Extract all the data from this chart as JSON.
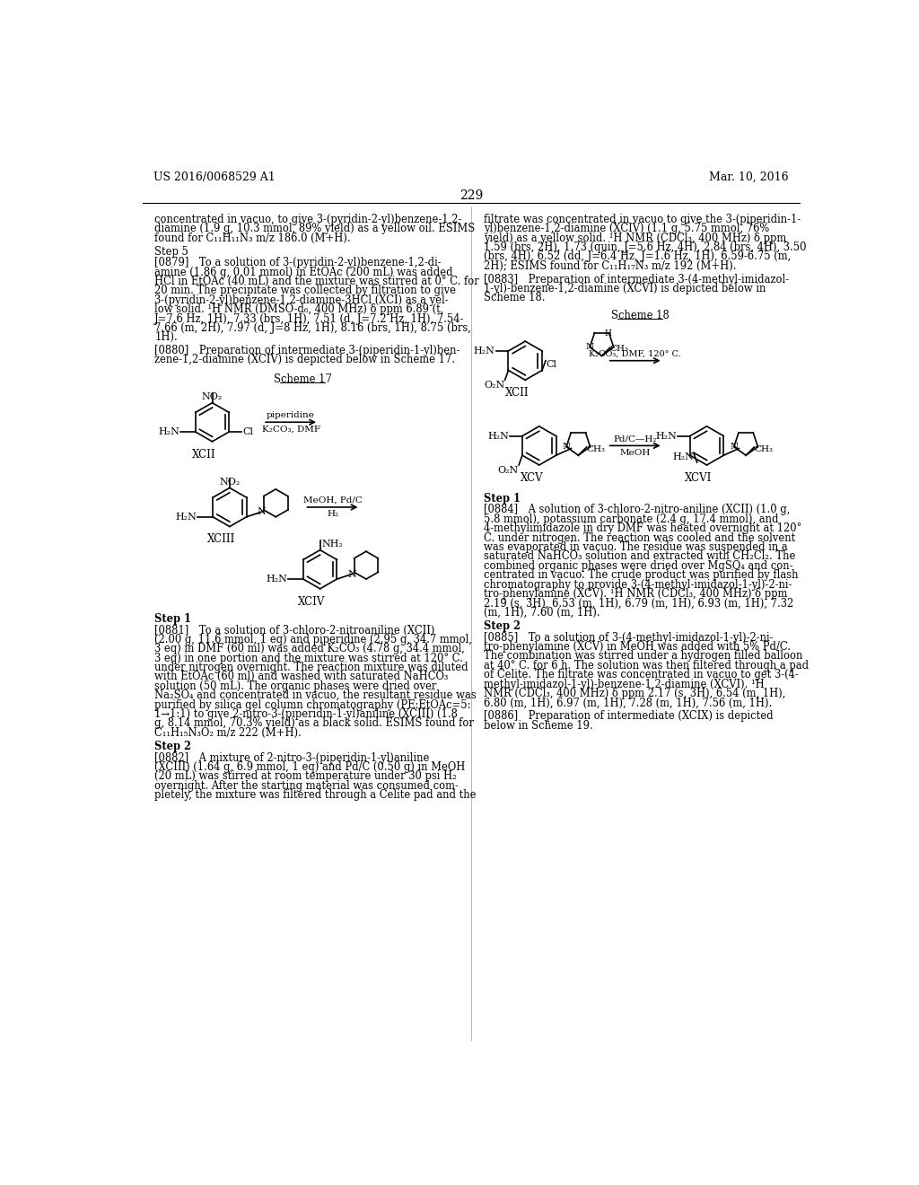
{
  "page_number": "229",
  "header_left": "US 2016/0068529 A1",
  "header_right": "Mar. 10, 2016",
  "bg_color": "#ffffff",
  "text_color": "#000000",
  "left_column": {
    "intro_text": "concentrated in vacuo, to give 3-(pyridin-2-yl)benzene-1,2-\ndiamine (1.9 g, 10.3 mmol, 89% yield) as a yellow oil. ESIMS\nfound for C₁₁H₁₁N₃ m/z 186.0 (M+H).",
    "step5_title": "Step 5",
    "step5_para": "[0879] To a solution of 3-(pyridin-2-yl)benzene-1,2-di-\namine (1.86 g, 0.01 mmol) in EtOAc (200 mL) was added\nHCl in EtOAc (40 mL) and the mixture was stirred at 0° C. for\n20 min. The precipitate was collected by filtration to give\n3-(pyridin-2-yl)benzene-1,2-diamine-3HCl (XCI) as a yel-\nlow solid. ¹H NMR (DMSO-d₆, 400 MHz) δ ppm 6.89 (t,\nJ=7.6 Hz, 1H), 7.33 (brs, 1H), 7.51 (d, J=7.2 Hz, 1H), 7.54-\n7.66 (m, 2H), 7.97 (d, J=8 Hz, 1H), 8.16 (brs, 1H), 8.75 (brs,\n1H).",
    "para0880": "[0880] Preparation of intermediate 3-(piperidin-1-yl)ben-\nzene-1,2-diamine (XCIV) is depicted below in Scheme 17.",
    "scheme17_label": "Scheme 17",
    "step1_title": "Step 1",
    "step1_para": "[0881] To a solution of 3-chloro-2-nitroaniline (XCII)\n(2.00 g, 11.6 mmol, 1 eq) and piperidine (2.95 g, 34.7 mmol,\n3 eq) in DMF (60 ml) was added K₂CO₃ (4.78 g, 34.4 mmol,\n3 eq) in one portion and the mixture was stirred at 120° C.\nunder nitrogen overnight. The reaction mixture was diluted\nwith EtOAc (60 ml) and washed with saturated NaHCO₃\nsolution (50 mL). The organic phases were dried over\nNa₂SO₄ and concentrated in vacuo, the resultant residue was\npurified by silica gel column chromatography (PE:EtOAc=5:\n1→1:1) to give 2-nitro-3-(piperidin-1-yl)aniline (XCIII) (1.8\ng, 8.14 mmol, 70.3% yield) as a black solid. ESIMS found for\nC₁₁H₁₅N₃O₂ m/z 222 (M+H).",
    "step2_title": "Step 2",
    "step2_para": "[0882] A mixture of 2-nitro-3-(piperidin-1-yl)aniline\n(XCIII) (1.64 g, 6.9 mmol, 1 eq) and Pd/C (0.50 g) in MeOH\n(20 mL) was stirred at room temperature under 30 psi H₂\novernight. After the starting material was consumed com-\npletely, the mixture was filtered through a Celite pad and the"
  },
  "right_column": {
    "intro_text": "filtrate was concentrated in vacuo to give the 3-(piperidin-1-\nyl)benzene-1,2-diamine (XCIV) (1.1 g, 5.75 mmol, 76%\nyield) as a yellow solid. ¹H NMR (CDCl₃, 400 MHz) δ ppm\n1.59 (brs, 2H), 1.73 (quin, J=5.6 Hz, 4H), 2.84 (brs, 4H), 3.50\n(brs, 4H), 6.52 (dd, J=6.4 Hz, J=1.6 Hz, 1H), 6.59-6.75 (m,\n2H); ESIMS found for C₁₁H₁₇N₃ m/z 192 (M+H).",
    "para0883": "[0883] Preparation of intermediate 3-(4-methyl-imidazol-\n1-yl)-benzene-1,2-diamine (XCVI) is depicted below in\nScheme 18.",
    "scheme18_label": "Scheme 18",
    "step1_title": "Step 1",
    "step1_para": "[0884] A solution of 3-chloro-2-nitro-aniline (XCII) (1.0 g,\n5.8 mmol), potassium carbonate (2.4 g, 17.4 mmol), and\n4-methylimidazole in dry DMF was heated overnight at 120°\nC. under nitrogen. The reaction was cooled and the solvent\nwas evaporated in vacuo. The residue was suspended in a\nsaturated NaHCO₃ solution and extracted with CH₂Cl₂. The\ncombined organic phases were dried over MgSO₄ and con-\ncentrated in vacuo. The crude product was purified by flash\nchromatography to provide 3-(4-methyl-imidazol-1-yl)-2-ni-\ntro-phenylamine (XCV). ¹H NMR (CDCl₃, 400 MHz) δ ppm\n2.19 (s, 3H), 6.53 (m, 1H), 6.79 (m, 1H), 6.93 (m, 1H), 7.32\n(m, 1H), 7.60 (m, 1H).",
    "step2_title": "Step 2",
    "step2_para": "[0885] To a solution of 3-(4-methyl-imidazol-1-yl)-2-ni-\ntro-phenylamine (XCV) in MeOH was added with 5% Pd/C.\nThe combination was stirred under a hydrogen filled balloon\nat 40° C. for 6 h. The solution was then filtered through a pad\nof Celite. The filtrate was concentrated in vacuo to get 3-(4-\nmethyl-imidazol-1-yl)-benzene-1,2-diamine (XCVI). ¹H\nNMR (CDCl₃, 400 MHz) δ ppm 2.17 (s, 3H), 6.54 (m, 1H),\n6.80 (m, 1H), 6.97 (m, 1H), 7.28 (m, 1H), 7.56 (m, 1H).",
    "para0886": "[0886] Preparation of intermediate (XCIX) is depicted\nbelow in Scheme 19."
  }
}
